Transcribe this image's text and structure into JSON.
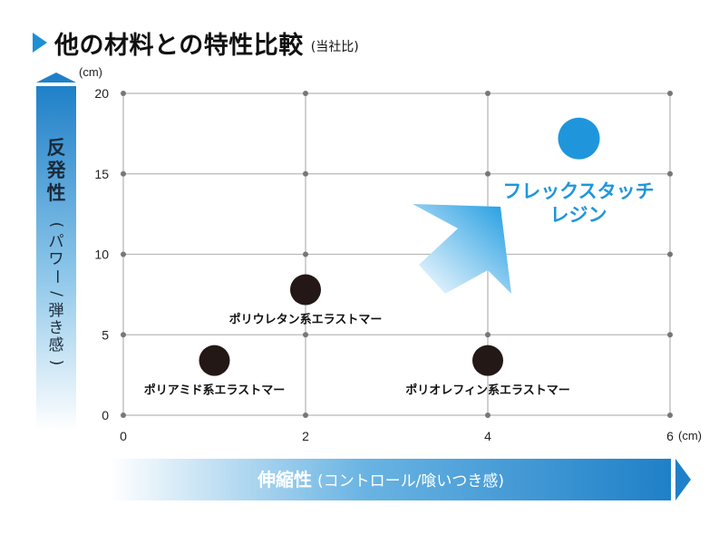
{
  "title": "他の材料との特性比較",
  "subtitle": "(当社比)",
  "colors": {
    "accent": "#1f96dc",
    "grid": "#b8b8b8",
    "dot": "#231815",
    "highlight": "#1f96dc"
  },
  "chart_data": {
    "type": "scatter",
    "xlim": [
      0,
      6
    ],
    "ylim": [
      0,
      20
    ],
    "x_ticks": [
      "0",
      "2",
      "4",
      "6"
    ],
    "y_ticks": [
      "0",
      "5",
      "10",
      "15",
      "20"
    ],
    "x_unit": "(cm)",
    "y_unit": "(cm)",
    "xlabel": "伸縮性",
    "xlabel_sub": "(コントロール/喰いつき感)",
    "ylabel_main": [
      "反",
      "発",
      "性"
    ],
    "ylabel_sub": [
      "(",
      "パ",
      "ワ",
      "ー",
      "/",
      "弾",
      "き",
      "感",
      ")"
    ],
    "grid": true,
    "points": [
      {
        "label": "ポリアミド系エラストマー",
        "x": 1.0,
        "y": 3.4
      },
      {
        "label": "ポリウレタン系エラストマー",
        "x": 2.0,
        "y": 7.8
      },
      {
        "label": "ポリオレフィン系エラストマー",
        "x": 4.0,
        "y": 3.4
      }
    ],
    "highlight": {
      "label_lines": [
        "フレックスタッチ",
        "レジン"
      ],
      "x": 5.0,
      "y": 17.2
    }
  }
}
